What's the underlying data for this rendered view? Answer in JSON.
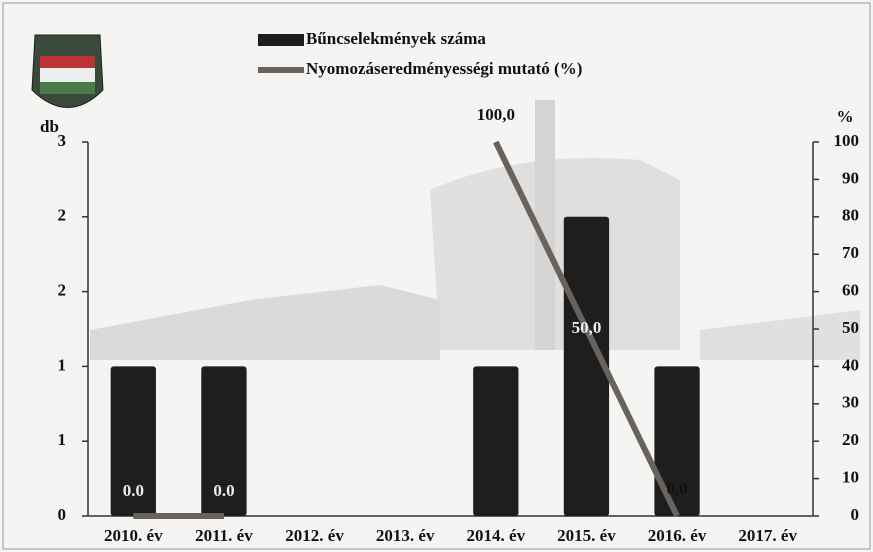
{
  "chart_data": {
    "type": "bar-line",
    "y_label": "db",
    "y2_label": "%",
    "categories": [
      "2010. év",
      "2011. év",
      "2012. év",
      "2013. év",
      "2014. év",
      "2015. év",
      "2016. év",
      "2017. év"
    ],
    "series": [
      {
        "name": "Bűncselekmények száma",
        "type": "bar",
        "color": "#1e1e1e",
        "values": [
          1,
          1,
          null,
          null,
          1,
          2,
          1,
          null
        ]
      },
      {
        "name": "Nyomozáseredményességi mutató (%)",
        "type": "line",
        "axis": "y2",
        "color": "#6a625c",
        "values": [
          0,
          0,
          null,
          null,
          100,
          50,
          0,
          null
        ],
        "value_labels": [
          "0.0",
          "0.0",
          null,
          null,
          "100,0",
          "50,0",
          "0,0",
          null
        ]
      }
    ],
    "ylim": [
      0,
      2.5
    ],
    "yticks": [
      0,
      {
        "value": 0.5,
        "label": "1"
      },
      1,
      {
        "value": 1.5,
        "label": "2"
      },
      2,
      {
        "value": 2.5,
        "label": "3"
      }
    ],
    "y2lim": [
      0,
      100
    ],
    "y2ticks": [
      0,
      10,
      20,
      30,
      40,
      50,
      60,
      70,
      80,
      90,
      100
    ]
  }
}
